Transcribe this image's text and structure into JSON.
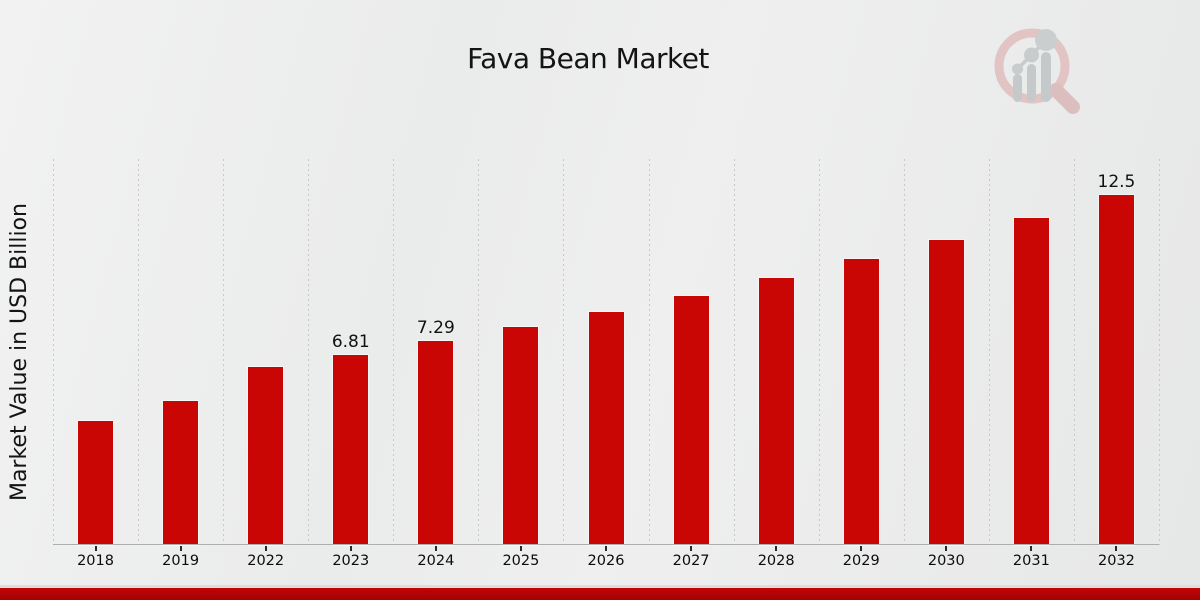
{
  "page": {
    "title": "Fava Bean Market"
  },
  "chart_data": {
    "type": "bar",
    "title": "Fava Bean Market",
    "xlabel": "",
    "ylabel": "Market Value in USD Billion",
    "categories": [
      "2018",
      "2019",
      "2022",
      "2023",
      "2024",
      "2025",
      "2026",
      "2027",
      "2028",
      "2029",
      "2030",
      "2031",
      "2032"
    ],
    "values": [
      4.42,
      5.16,
      6.37,
      6.81,
      7.29,
      7.8,
      8.34,
      8.92,
      9.54,
      10.21,
      10.92,
      11.68,
      12.5
    ],
    "point_labels": [
      "",
      "",
      "",
      "6.81",
      "7.29",
      "",
      "",
      "",
      "",
      "",
      "",
      "",
      "12.5"
    ],
    "ylim": [
      0,
      13.8
    ],
    "grid": "vertical-dashed",
    "legend": "none",
    "bar_color": "#c90604",
    "accent_band_color_top": "#c50505",
    "accent_band_color_bottom": "#a00202",
    "units": "USD Billion"
  },
  "logo": {
    "name": "market-research-magnifier-watermark",
    "ring_color": "#e2c4c4",
    "bar_color": "#c6c9c9"
  }
}
